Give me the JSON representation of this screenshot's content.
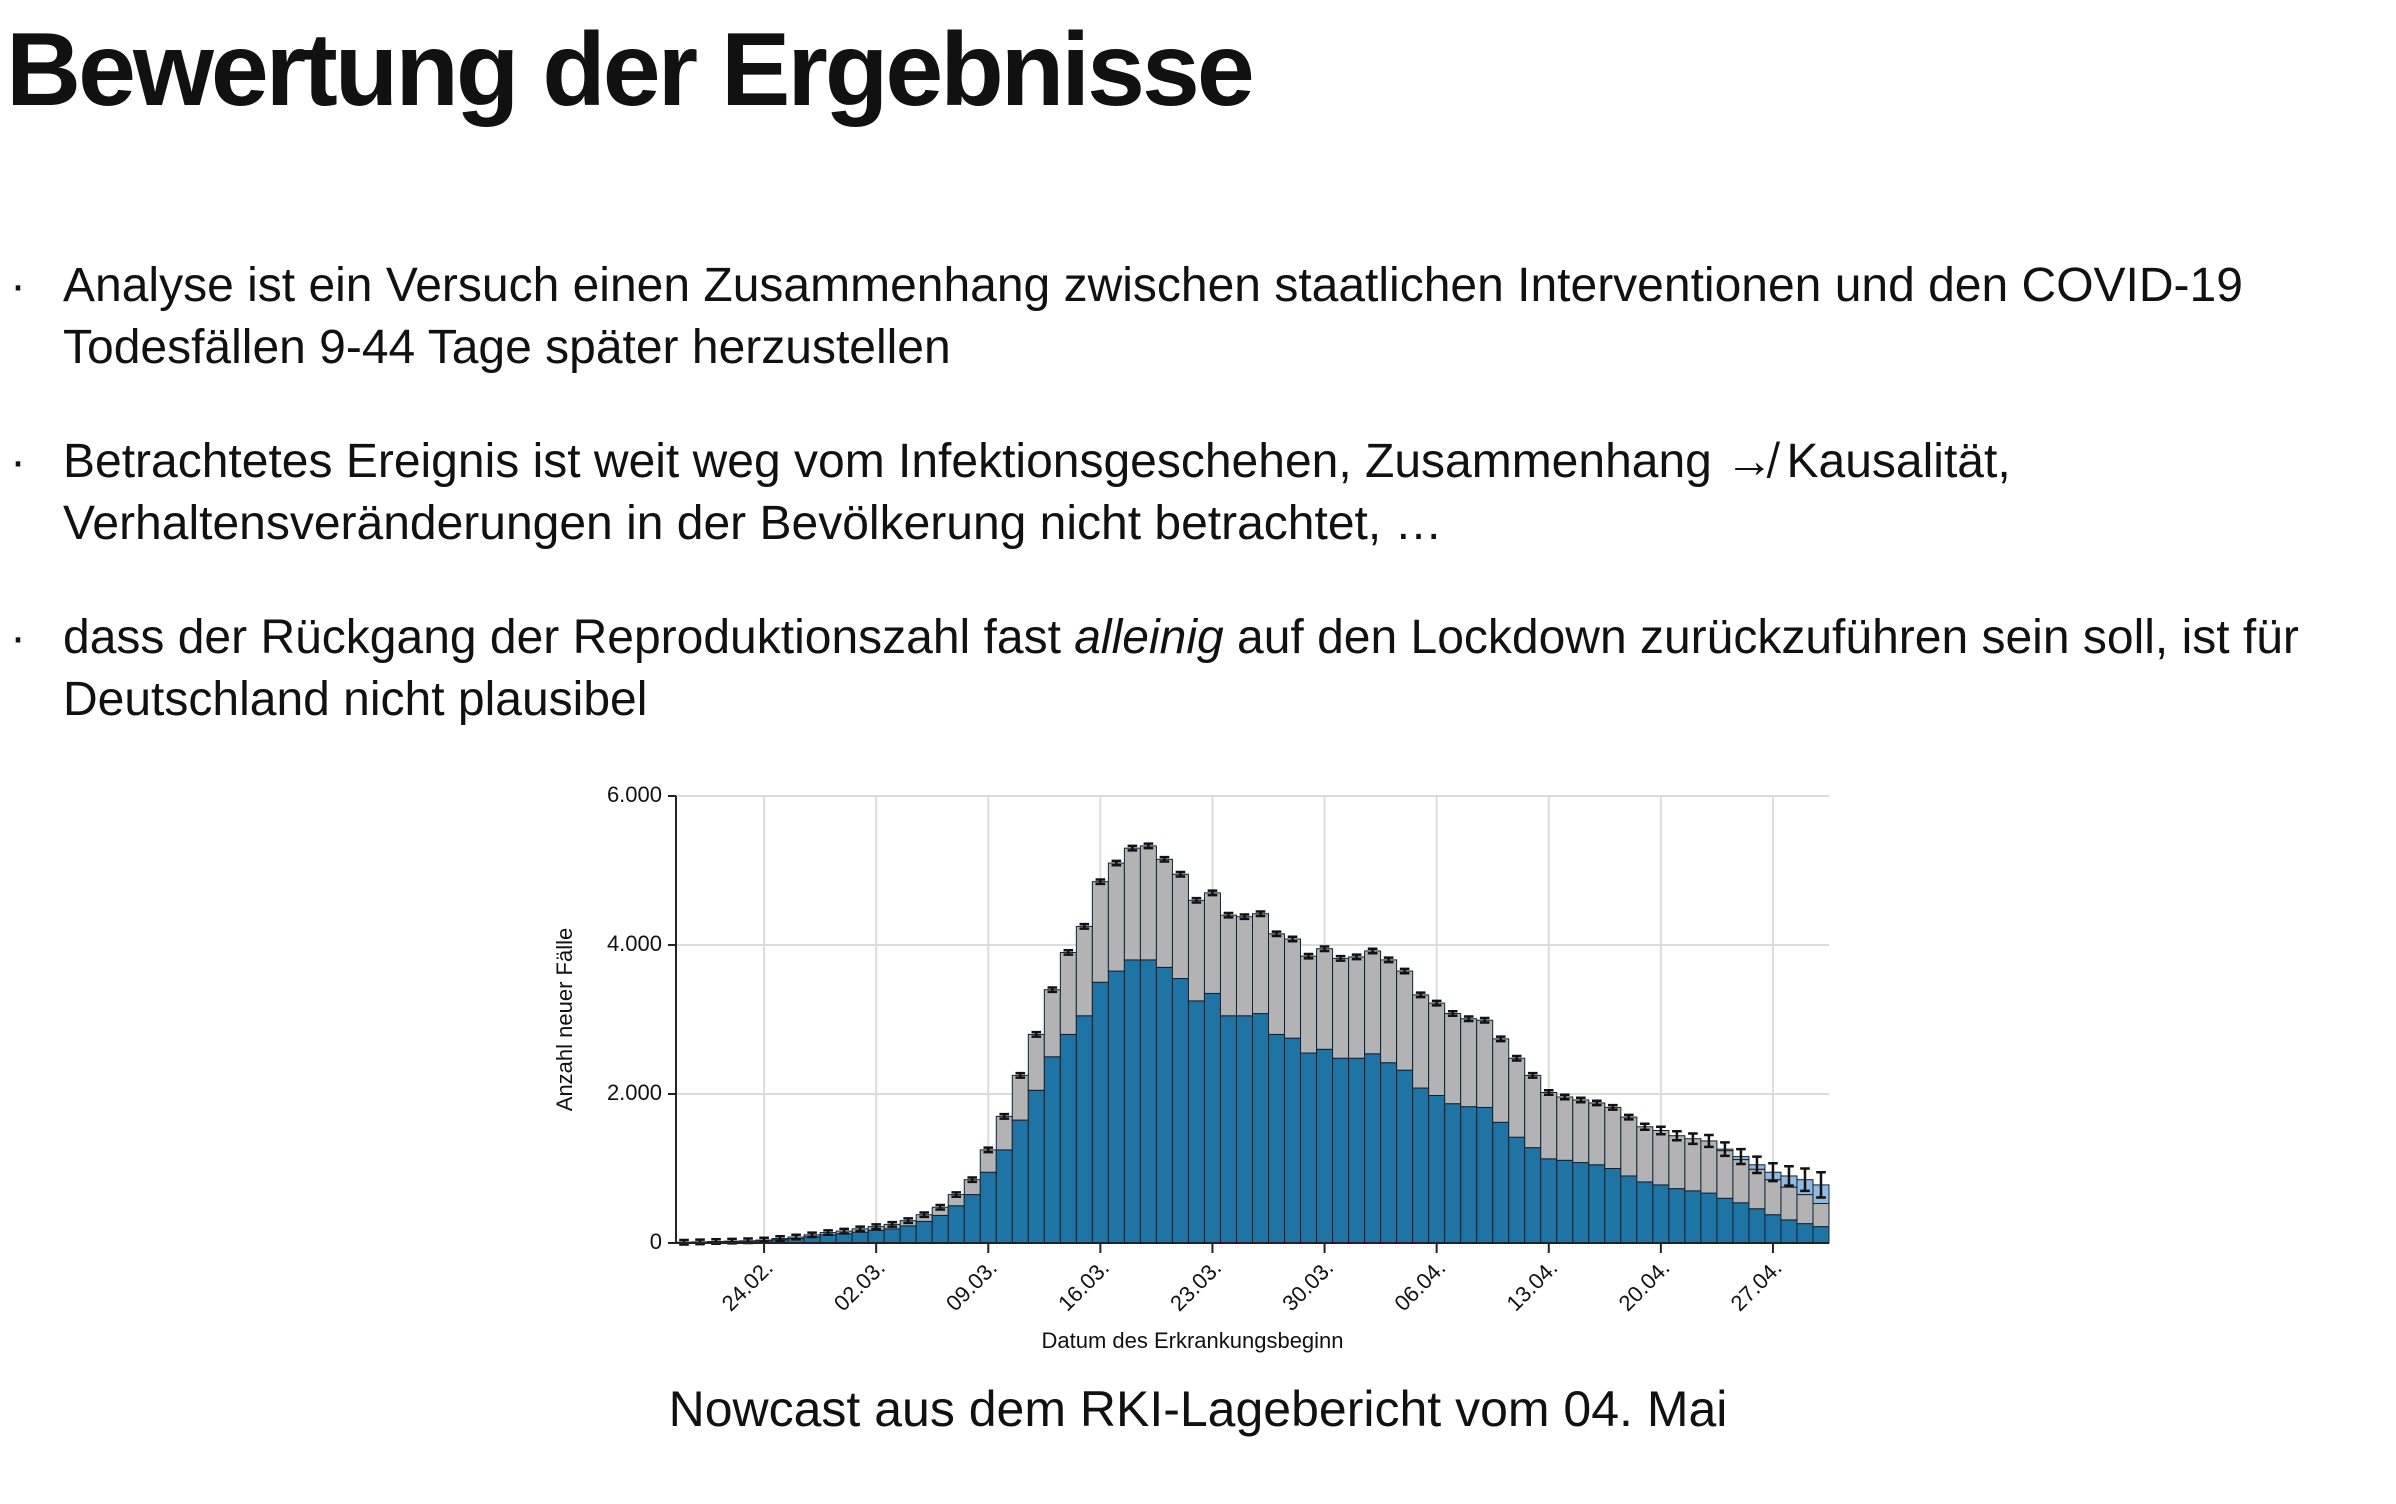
{
  "header": {
    "title": "Bewertung der Ergebnisse"
  },
  "bullets": [
    {
      "parts": [
        "Analyse ist ein Versuch einen Zusammenhang zwischen staatlichen Interventionen und den COVID-19 Todesfällen 9-44 Tage später herzustellen"
      ]
    },
    {
      "parts": [
        "Betrachtetes Ereignis ist weit weg vom Infektionsgeschehen, Zusammenhang ↛ Kausalität, Verhaltensveränderungen in der Bevölkerung nicht betrachtet, …"
      ]
    },
    {
      "parts": [
        "dass der Rückgang der Reproduktionszahl fast ",
        "alleinig",
        " auf den Lockdown zurückzuführen sein soll, ist für Deutschland nicht plausibel"
      ],
      "italic_part": 1
    }
  ],
  "caption": "Nowcast aus dem RKI-Lagebericht vom 04. Mai",
  "chart_data": {
    "type": "stacked-bar",
    "y_label": "Anzahl neuer Fälle",
    "x_label": "Datum des Erkrankungsbeginn",
    "grid": true,
    "ylim": [
      0,
      6000
    ],
    "yticks": [
      0,
      {
        "value": 2000,
        "label": "2.000"
      },
      {
        "value": 4000,
        "label": "4.000"
      },
      {
        "value": 6000,
        "label": "6.000"
      }
    ],
    "categories": [
      null,
      null,
      null,
      null,
      null,
      "24.02.",
      null,
      null,
      null,
      null,
      null,
      null,
      "02.03.",
      null,
      null,
      null,
      null,
      null,
      null,
      "09.03.",
      null,
      null,
      null,
      null,
      null,
      null,
      "16.03.",
      null,
      null,
      null,
      null,
      null,
      null,
      "23.03.",
      null,
      null,
      null,
      null,
      null,
      null,
      "30.03.",
      null,
      null,
      null,
      null,
      null,
      null,
      "06.04.",
      null,
      null,
      null,
      null,
      null,
      null,
      "13.04.",
      null,
      null,
      null,
      null,
      null,
      null,
      "20.04.",
      null,
      null,
      null,
      null,
      null,
      null,
      "27.04.",
      null,
      null,
      null
    ],
    "series": [
      {
        "color": "#1f74a6",
        "values": [
          8,
          12,
          15,
          20,
          25,
          30,
          45,
          60,
          85,
          110,
          125,
          145,
          170,
          190,
          230,
          290,
          370,
          500,
          650,
          950,
          1250,
          1650,
          2050,
          2500,
          2800,
          3050,
          3500,
          3650,
          3800,
          3800,
          3700,
          3550,
          3250,
          3350,
          3050,
          3050,
          3080,
          2800,
          2750,
          2550,
          2600,
          2480,
          2480,
          2540,
          2420,
          2320,
          2080,
          1980,
          1870,
          1830,
          1820,
          1620,
          1420,
          1280,
          1130,
          1110,
          1080,
          1050,
          1000,
          900,
          820,
          780,
          730,
          700,
          670,
          600,
          540,
          460,
          380,
          310,
          260,
          220
        ]
      },
      {
        "color": "#b3b3b3",
        "values": [
          2,
          3,
          5,
          5,
          5,
          10,
          15,
          20,
          25,
          30,
          35,
          45,
          50,
          60,
          70,
          90,
          110,
          150,
          200,
          300,
          450,
          600,
          750,
          900,
          1100,
          1200,
          1350,
          1450,
          1500,
          1530,
          1450,
          1400,
          1350,
          1350,
          1350,
          1330,
          1340,
          1350,
          1330,
          1300,
          1350,
          1340,
          1360,
          1380,
          1380,
          1330,
          1250,
          1240,
          1210,
          1180,
          1170,
          1120,
          1060,
          970,
          890,
          850,
          840,
          830,
          820,
          790,
          740,
          730,
          710,
          700,
          700,
          640,
          580,
          530,
          470,
          440,
          390,
          310
        ]
      },
      {
        "color": "#8fb9de",
        "values": [
          0,
          0,
          0,
          0,
          0,
          0,
          0,
          0,
          0,
          0,
          0,
          0,
          0,
          0,
          0,
          0,
          0,
          0,
          0,
          0,
          0,
          0,
          0,
          0,
          0,
          0,
          0,
          0,
          0,
          0,
          0,
          0,
          0,
          0,
          0,
          0,
          0,
          0,
          0,
          0,
          0,
          0,
          0,
          0,
          0,
          0,
          0,
          0,
          0,
          0,
          0,
          0,
          0,
          0,
          0,
          0,
          0,
          0,
          0,
          0,
          0,
          0,
          0,
          0,
          0,
          20,
          40,
          60,
          100,
          150,
          200,
          250
        ],
        "errors": [
          30,
          30,
          30,
          30,
          30,
          30,
          30,
          30,
          30,
          30,
          30,
          30,
          30,
          30,
          30,
          30,
          30,
          30,
          30,
          30,
          30,
          30,
          30,
          30,
          30,
          30,
          30,
          30,
          30,
          30,
          30,
          30,
          30,
          30,
          30,
          30,
          30,
          30,
          30,
          30,
          30,
          30,
          30,
          30,
          30,
          30,
          30,
          30,
          30,
          30,
          30,
          30,
          30,
          30,
          30,
          30,
          30,
          30,
          30,
          30,
          40,
          50,
          60,
          70,
          80,
          90,
          100,
          110,
          120,
          130,
          150,
          170
        ]
      }
    ]
  }
}
